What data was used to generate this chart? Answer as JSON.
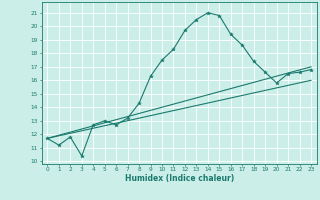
{
  "xlabel": "Humidex (Indice chaleur)",
  "ylabel": "",
  "bg_color": "#cceee8",
  "line_color": "#1a7a6e",
  "grid_color": "#ffffff",
  "xlim": [
    -0.5,
    23.5
  ],
  "ylim": [
    9.8,
    21.8
  ],
  "yticks": [
    10,
    11,
    12,
    13,
    14,
    15,
    16,
    17,
    18,
    19,
    20,
    21
  ],
  "xticks": [
    0,
    1,
    2,
    3,
    4,
    5,
    6,
    7,
    8,
    9,
    10,
    11,
    12,
    13,
    14,
    15,
    16,
    17,
    18,
    19,
    20,
    21,
    22,
    23
  ],
  "line1_x": [
    0,
    1,
    2,
    3,
    4,
    5,
    6,
    7,
    8,
    9,
    10,
    11,
    12,
    13,
    14,
    15,
    16,
    17,
    18,
    19,
    20,
    21,
    22,
    23
  ],
  "line1_y": [
    11.7,
    11.2,
    11.8,
    10.4,
    12.7,
    13.0,
    12.7,
    13.2,
    14.3,
    16.3,
    17.5,
    18.3,
    19.7,
    20.5,
    21.0,
    20.8,
    19.4,
    18.6,
    17.4,
    16.6,
    15.8,
    16.5,
    16.6,
    16.8
  ],
  "line2_x": [
    0,
    23
  ],
  "line2_y": [
    11.7,
    17.0
  ],
  "line3_x": [
    0,
    23
  ],
  "line3_y": [
    11.7,
    16.0
  ],
  "tick_fontsize": 4.2,
  "xlabel_fontsize": 5.5
}
